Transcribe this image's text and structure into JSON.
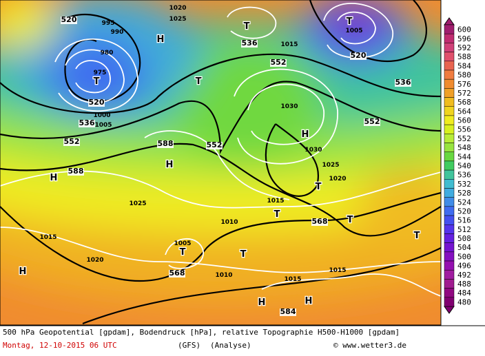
{
  "colorbar": {
    "ticks": [
      600,
      596,
      592,
      588,
      584,
      580,
      576,
      572,
      568,
      564,
      560,
      556,
      552,
      548,
      544,
      540,
      536,
      532,
      528,
      524,
      520,
      516,
      512,
      508,
      504,
      500,
      496,
      492,
      488,
      484,
      480
    ],
    "colors": [
      "#a01e6e",
      "#c02c70",
      "#d04078",
      "#e0506c",
      "#e86450",
      "#f07c40",
      "#f08c30",
      "#f0a028",
      "#f0bc20",
      "#f0d420",
      "#f0ec20",
      "#d8f020",
      "#b8ec38",
      "#98e440",
      "#68d840",
      "#40cc60",
      "#40c49c",
      "#40bcd0",
      "#40ace0",
      "#408ce8",
      "#406cf0",
      "#4450f0",
      "#5434ec",
      "#6420e0",
      "#7414d0",
      "#8410c0",
      "#9410b0",
      "#a01ca0",
      "#a01c90",
      "#900880",
      "#800070"
    ]
  },
  "map_labels": [
    "520",
    "536",
    "552",
    "536",
    "552",
    "520",
    "536",
    "552",
    "588",
    "552",
    "588",
    "568",
    "568",
    "584",
    "520",
    "1005",
    "1015",
    "1025",
    "1020",
    "1030",
    "1030",
    "1025",
    "1020",
    "1015",
    "1010",
    "1025",
    "1015",
    "1020",
    "1005",
    "1010",
    "1015",
    "1015",
    "975",
    "980",
    "990",
    "995",
    "1000",
    "1005",
    "T",
    "T",
    "T",
    "T",
    "T",
    "T",
    "T",
    "T",
    "T",
    "T",
    "H",
    "H",
    "H",
    "H",
    "H",
    "H",
    "H"
  ],
  "footer": {
    "line1": "500 hPa Geopotential [gpdam], Bodendruck [hPa], relative Topographie H500-H1000 [gpdam]",
    "date": "Montag, 12-10-2015  06 UTC",
    "model": "(GFS)",
    "analysis": "(Analyse)",
    "credit": "© www.wetter3.de"
  }
}
